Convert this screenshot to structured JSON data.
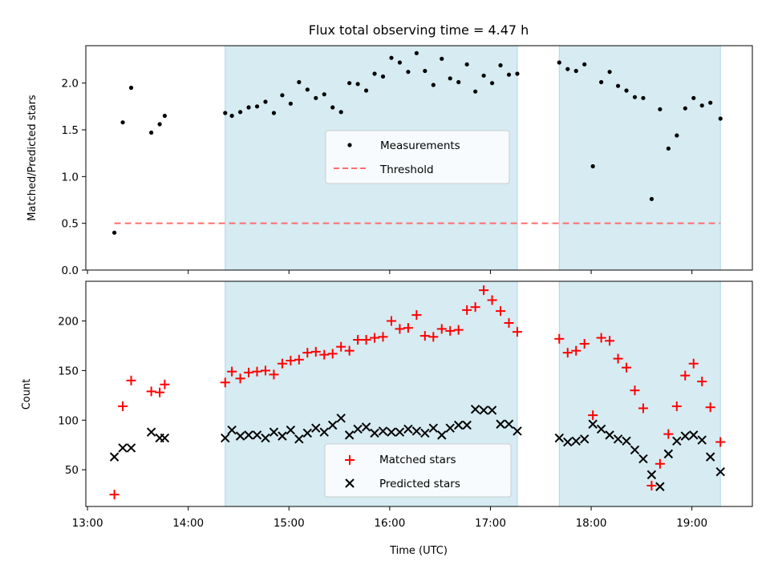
{
  "title": "Flux total observing time = 4.47 h",
  "xlabel": "Time (UTC)",
  "x_ticks": [
    "13:00",
    "14:00",
    "15:00",
    "16:00",
    "17:00",
    "18:00",
    "19:00"
  ],
  "colors": {
    "measurement": "#000000",
    "threshold": "#ff6e6e",
    "matched": "#ff0000",
    "predicted": "#000000",
    "shade": "#add8e6"
  },
  "chart_data": [
    {
      "type": "scatter",
      "ylabel": "Matched/Predicted stars",
      "xlim": [
        "12:59",
        "19:36"
      ],
      "ylim": [
        0,
        2.4
      ],
      "y_ticks": [
        "0.0",
        "0.5",
        "1.0",
        "1.5",
        "2.0"
      ],
      "shaded_ranges": [
        [
          "14:22",
          "17:16"
        ],
        [
          "17:41",
          "19:17"
        ]
      ],
      "legend": {
        "position": "center",
        "entries": [
          "Measurements",
          "Threshold"
        ]
      },
      "series": [
        {
          "name": "Measurements",
          "marker": "dot",
          "points": [
            [
              "13:16",
              0.4
            ],
            [
              "13:21",
              1.58
            ],
            [
              "13:26",
              1.95
            ],
            [
              "13:38",
              1.47
            ],
            [
              "13:43",
              1.56
            ],
            [
              "13:46",
              1.65
            ],
            [
              "14:22",
              1.68
            ],
            [
              "14:26",
              1.65
            ],
            [
              "14:31",
              1.69
            ],
            [
              "14:36",
              1.74
            ],
            [
              "14:41",
              1.75
            ],
            [
              "14:46",
              1.8
            ],
            [
              "14:51",
              1.68
            ],
            [
              "14:56",
              1.87
            ],
            [
              "15:01",
              1.78
            ],
            [
              "15:06",
              2.01
            ],
            [
              "15:11",
              1.93
            ],
            [
              "15:16",
              1.84
            ],
            [
              "15:21",
              1.88
            ],
            [
              "15:26",
              1.74
            ],
            [
              "15:31",
              1.69
            ],
            [
              "15:36",
              2.0
            ],
            [
              "15:41",
              1.99
            ],
            [
              "15:46",
              1.92
            ],
            [
              "15:51",
              2.1
            ],
            [
              "15:56",
              2.07
            ],
            [
              "16:01",
              2.27
            ],
            [
              "16:06",
              2.22
            ],
            [
              "16:11",
              2.12
            ],
            [
              "16:16",
              2.32
            ],
            [
              "16:21",
              2.13
            ],
            [
              "16:26",
              1.98
            ],
            [
              "16:31",
              2.26
            ],
            [
              "16:36",
              2.05
            ],
            [
              "16:41",
              2.01
            ],
            [
              "16:46",
              2.2
            ],
            [
              "16:51",
              1.91
            ],
            [
              "16:56",
              2.08
            ],
            [
              "17:01",
              2.0
            ],
            [
              "17:06",
              2.19
            ],
            [
              "17:11",
              2.09
            ],
            [
              "17:16",
              2.1
            ],
            [
              "17:41",
              2.22
            ],
            [
              "17:46",
              2.15
            ],
            [
              "17:51",
              2.13
            ],
            [
              "17:56",
              2.2
            ],
            [
              "18:01",
              1.11
            ],
            [
              "18:06",
              2.01
            ],
            [
              "18:11",
              2.12
            ],
            [
              "18:16",
              1.97
            ],
            [
              "18:21",
              1.92
            ],
            [
              "18:26",
              1.85
            ],
            [
              "18:31",
              1.84
            ],
            [
              "18:36",
              0.76
            ],
            [
              "18:41",
              1.72
            ],
            [
              "18:46",
              1.3
            ],
            [
              "18:51",
              1.44
            ],
            [
              "18:56",
              1.73
            ],
            [
              "19:01",
              1.84
            ],
            [
              "19:06",
              1.76
            ],
            [
              "19:11",
              1.79
            ],
            [
              "19:17",
              1.62
            ]
          ]
        },
        {
          "name": "Threshold",
          "type": "line",
          "style": "dashed",
          "x": [
            "13:16",
            "19:17"
          ],
          "y": [
            0.5,
            0.5
          ]
        }
      ]
    },
    {
      "type": "scatter",
      "ylabel": "Count",
      "xlim": [
        "12:59",
        "19:36"
      ],
      "ylim": [
        13,
        240
      ],
      "y_ticks": [
        "50",
        "100",
        "150",
        "200"
      ],
      "shaded_ranges": [
        [
          "14:22",
          "17:16"
        ],
        [
          "17:41",
          "19:17"
        ]
      ],
      "legend": {
        "position": "lower center",
        "entries": [
          "Matched stars",
          "Predicted stars"
        ]
      },
      "x": [
        "13:16",
        "13:21",
        "13:26",
        "13:38",
        "13:43",
        "13:46",
        "14:22",
        "14:26",
        "14:31",
        "14:36",
        "14:41",
        "14:46",
        "14:51",
        "14:56",
        "15:01",
        "15:06",
        "15:11",
        "15:16",
        "15:21",
        "15:26",
        "15:31",
        "15:36",
        "15:41",
        "15:46",
        "15:51",
        "15:56",
        "16:01",
        "16:06",
        "16:11",
        "16:16",
        "16:21",
        "16:26",
        "16:31",
        "16:36",
        "16:41",
        "16:46",
        "16:51",
        "16:56",
        "17:01",
        "17:06",
        "17:11",
        "17:16",
        "17:41",
        "17:46",
        "17:51",
        "17:56",
        "18:01",
        "18:06",
        "18:11",
        "18:16",
        "18:21",
        "18:26",
        "18:31",
        "18:36",
        "18:41",
        "18:46",
        "18:51",
        "18:56",
        "19:01",
        "19:06",
        "19:11",
        "19:17"
      ],
      "series": [
        {
          "name": "Matched stars",
          "marker": "+",
          "values": [
            25,
            114,
            140,
            129,
            128,
            136,
            138,
            149,
            142,
            148,
            149,
            150,
            146,
            157,
            160,
            161,
            168,
            169,
            166,
            167,
            174,
            170,
            181,
            181,
            183,
            184,
            200,
            192,
            193,
            206,
            185,
            184,
            192,
            190,
            191,
            211,
            214,
            231,
            221,
            210,
            198,
            189,
            182,
            168,
            170,
            177,
            105,
            183,
            180,
            162,
            153,
            130,
            112,
            34,
            56,
            86,
            114,
            145,
            157,
            139,
            113,
            78
          ]
        },
        {
          "name": "Predicted stars",
          "marker": "x",
          "values": [
            63,
            72,
            72,
            88,
            82,
            82,
            82,
            90,
            84,
            85,
            85,
            82,
            88,
            84,
            90,
            81,
            87,
            92,
            88,
            95,
            102,
            85,
            91,
            93,
            87,
            89,
            88,
            88,
            91,
            89,
            87,
            92,
            85,
            92,
            95,
            95,
            111,
            110,
            110,
            96,
            96,
            89,
            82,
            78,
            79,
            81,
            96,
            91,
            85,
            81,
            79,
            70,
            61,
            45,
            33,
            66,
            79,
            84,
            85,
            80,
            63,
            48
          ]
        }
      ]
    }
  ]
}
